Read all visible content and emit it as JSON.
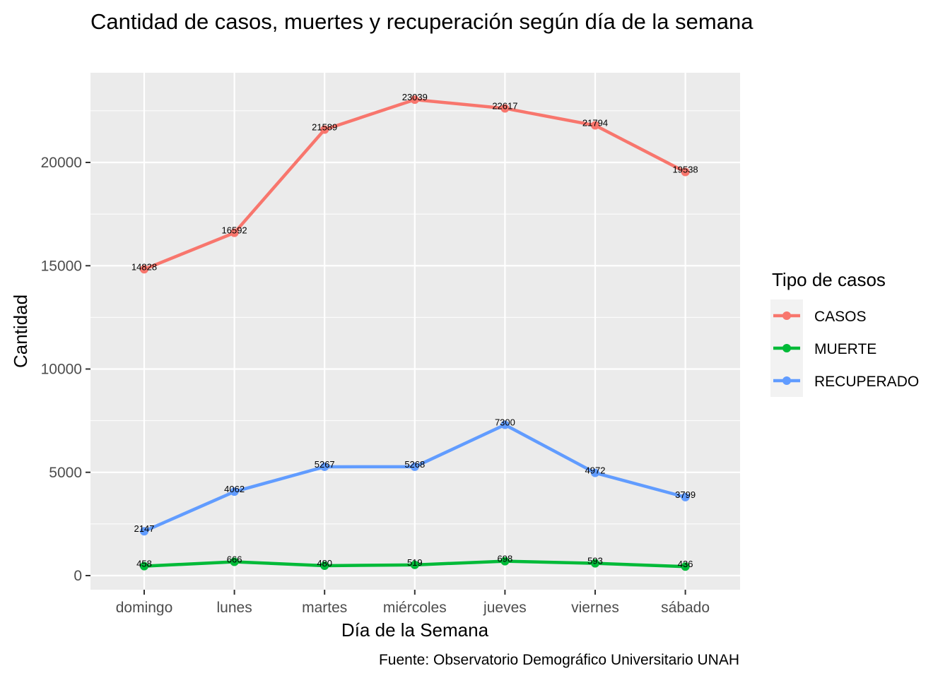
{
  "chart_data": {
    "type": "line",
    "title": "Cantidad de casos, muertes y recuperación según día de la semana",
    "xlabel": "Día de la Semana",
    "ylabel": "Cantidad",
    "caption": "Fuente: Observatorio Demográfico Universitario UNAH",
    "categories": [
      "domingo",
      "lunes",
      "martes",
      "miércoles",
      "jueves",
      "viernes",
      "sábado"
    ],
    "yticks": [
      0,
      5000,
      10000,
      15000,
      20000
    ],
    "ylim": [
      -700,
      24100
    ],
    "grid": true,
    "legend": {
      "title": "Tipo de casos",
      "placement": "right"
    },
    "series": [
      {
        "name": "CASOS",
        "color": "#F8766D",
        "values": [
          14828,
          16592,
          21589,
          23039,
          22617,
          21794,
          19538
        ]
      },
      {
        "name": "MUERTE",
        "color": "#00BA38",
        "values": [
          458,
          666,
          480,
          519,
          698,
          593,
          436
        ]
      },
      {
        "name": "RECUPERADO",
        "color": "#619CFF",
        "values": [
          2147,
          4062,
          5267,
          5268,
          7300,
          4972,
          3799
        ]
      }
    ]
  }
}
